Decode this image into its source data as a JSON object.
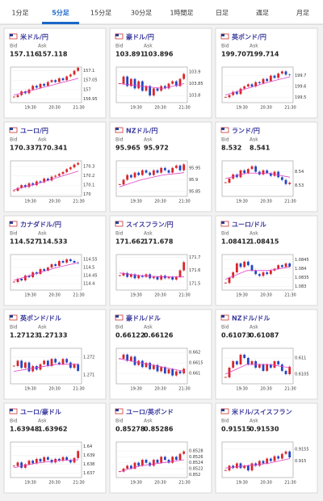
{
  "tabs": [
    "1分足",
    "5分足",
    "15分足",
    "30分足",
    "1時間足",
    "日足",
    "週足",
    "月足"
  ],
  "active_tab": 1,
  "labels": {
    "bid": "Bid",
    "ask": "Ask"
  },
  "xlabels": [
    "19:30",
    "20:30",
    "21:30"
  ],
  "cards": [
    {
      "title": "米ドル/円",
      "bid": "157.116",
      "ask": "157.118",
      "chart": {
        "ylim": [
          156.93,
          157.12
        ],
        "yticks": [
          157.1,
          157.05,
          157,
          156.95
        ],
        "closes": [
          156.96,
          156.97,
          156.99,
          156.98,
          157.0,
          157.02,
          157.01,
          157.03,
          157.02,
          157.04,
          157.05,
          157.04,
          157.06,
          157.05,
          157.07,
          157.08,
          157.1,
          157.116
        ],
        "ma": [
          156.97,
          157.0,
          157.03,
          157.06
        ]
      }
    },
    {
      "title": "豪ドル/円",
      "bid": "103.891",
      "ask": "103.896",
      "chart": {
        "ylim": [
          103.77,
          103.92
        ],
        "yticks": [
          103.9,
          103.85,
          103.8
        ],
        "closes": [
          103.85,
          103.88,
          103.84,
          103.87,
          103.83,
          103.86,
          103.82,
          103.84,
          103.8,
          103.83,
          103.82,
          103.84,
          103.83,
          103.85,
          103.86,
          103.84,
          103.87,
          103.891
        ],
        "ma": [
          103.85,
          103.84,
          103.83,
          103.85
        ]
      }
    },
    {
      "title": "英ポンド/円",
      "bid": "199.707",
      "ask": "199.714",
      "chart": {
        "ylim": [
          199.45,
          199.78
        ],
        "yticks": [
          199.7,
          199.6,
          199.5
        ],
        "closes": [
          199.5,
          199.52,
          199.55,
          199.53,
          199.58,
          199.6,
          199.62,
          199.6,
          199.64,
          199.63,
          199.67,
          199.65,
          199.7,
          199.68,
          199.72,
          199.74,
          199.71,
          199.707
        ],
        "ma": [
          199.52,
          199.58,
          199.64,
          199.69
        ]
      }
    },
    {
      "title": "ユーロ/円",
      "bid": "170.337",
      "ask": "170.341",
      "chart": {
        "ylim": [
          169.98,
          170.36
        ],
        "yticks": [
          170.3,
          170.2,
          170.1,
          170
        ],
        "closes": [
          170.04,
          170.07,
          170.1,
          170.08,
          170.12,
          170.1,
          170.14,
          170.13,
          170.17,
          170.15,
          170.19,
          170.2,
          170.22,
          170.24,
          170.27,
          170.29,
          170.32,
          170.337
        ],
        "ma": [
          170.05,
          170.11,
          170.18,
          170.25
        ]
      }
    },
    {
      "title": "NZドル/円",
      "bid": "95.965",
      "ask": "95.972",
      "chart": {
        "ylim": [
          95.83,
          95.98
        ],
        "yticks": [
          95.95,
          95.9,
          95.85
        ],
        "closes": [
          95.88,
          95.9,
          95.92,
          95.91,
          95.93,
          95.92,
          95.94,
          95.93,
          95.92,
          95.94,
          95.93,
          95.95,
          95.94,
          95.93,
          95.95,
          95.96,
          95.94,
          95.965
        ],
        "ma": [
          95.87,
          95.9,
          95.92,
          95.93
        ]
      }
    },
    {
      "title": "ランド/円",
      "bid": "8.532",
      "ask": "8.541",
      "chart": {
        "ylim": [
          8.522,
          8.548
        ],
        "yticks": [
          8.54,
          8.53
        ],
        "closes": [
          8.532,
          8.535,
          8.538,
          8.536,
          8.541,
          8.539,
          8.542,
          8.544,
          8.54,
          8.538,
          8.541,
          8.539,
          8.537,
          8.54,
          8.536,
          8.534,
          8.531,
          8.532
        ],
        "ma": [
          8.535,
          8.539,
          8.539,
          8.536
        ]
      }
    },
    {
      "title": "カナダドル/円",
      "bid": "114.527",
      "ask": "114.533",
      "chart": {
        "ylim": [
          114.36,
          114.58
        ],
        "yticks": [
          114.55,
          114.5,
          114.45,
          114.4
        ],
        "closes": [
          114.41,
          114.43,
          114.42,
          114.45,
          114.44,
          114.47,
          114.46,
          114.49,
          114.48,
          114.5,
          114.52,
          114.51,
          114.54,
          114.53,
          114.55,
          114.54,
          114.53,
          114.527
        ],
        "ma": [
          114.42,
          114.46,
          114.5,
          114.53
        ]
      }
    },
    {
      "title": "スイスフラン/円",
      "bid": "171.662",
      "ask": "171.678",
      "chart": {
        "ylim": [
          171.45,
          171.72
        ],
        "yticks": [
          171.7,
          171.6,
          171.5
        ],
        "closes": [
          171.56,
          171.58,
          171.55,
          171.57,
          171.54,
          171.56,
          171.55,
          171.57,
          171.54,
          171.55,
          171.53,
          171.56,
          171.54,
          171.55,
          171.53,
          171.55,
          171.6,
          171.662
        ],
        "ma": [
          171.58,
          171.56,
          171.55,
          171.55
        ]
      }
    },
    {
      "title": "ユーロ/ドル",
      "bid": "1.08412",
      "ask": "1.08415",
      "chart": {
        "ylim": [
          1.0828,
          1.0848
        ],
        "yticks": [
          1.0845,
          1.084,
          1.0835,
          1.083
        ],
        "closes": [
          1.0832,
          1.0835,
          1.0838,
          1.0843,
          1.0841,
          1.0844,
          1.0842,
          1.0839,
          1.0837,
          1.0836,
          1.0838,
          1.0837,
          1.0839,
          1.084,
          1.0842,
          1.0841,
          1.0843,
          1.08412
        ],
        "ma": [
          1.0834,
          1.0839,
          1.0839,
          1.0841
        ]
      }
    },
    {
      "title": "英ポンド/ドル",
      "bid": "1.27123",
      "ask": "1.27133",
      "chart": {
        "ylim": [
          1.2705,
          1.2725
        ],
        "yticks": [
          1.272,
          1.271
        ],
        "closes": [
          1.2715,
          1.2718,
          1.2714,
          1.2717,
          1.2712,
          1.2715,
          1.2713,
          1.2716,
          1.2718,
          1.2715,
          1.2719,
          1.2717,
          1.2716,
          1.2719,
          1.2717,
          1.2714,
          1.2716,
          1.27123
        ],
        "ma": [
          1.2712,
          1.2714,
          1.2716,
          1.2716
        ]
      }
    },
    {
      "title": "豪ドル/ドル",
      "bid": "0.66122",
      "ask": "0.66126",
      "chart": {
        "ylim": [
          0.6605,
          0.6622
        ],
        "yticks": [
          0.662,
          0.6615,
          0.661
        ],
        "closes": [
          0.6617,
          0.6619,
          0.6616,
          0.6618,
          0.6614,
          0.6616,
          0.6613,
          0.6615,
          0.6612,
          0.6614,
          0.6611,
          0.6613,
          0.661,
          0.6612,
          0.6609,
          0.6611,
          0.661,
          0.66122
        ],
        "ma": [
          0.6617,
          0.6615,
          0.6613,
          0.6611
        ]
      }
    },
    {
      "title": "NZドル/ドル",
      "bid": "0.61073",
      "ask": "0.61087",
      "chart": {
        "ylim": [
          0.6102,
          0.6113
        ],
        "yticks": [
          0.611,
          0.6105
        ],
        "closes": [
          0.6104,
          0.6107,
          0.6109,
          0.6108,
          0.6111,
          0.611,
          0.6108,
          0.6109,
          0.6107,
          0.6108,
          0.6106,
          0.6108,
          0.6107,
          0.6109,
          0.6108,
          0.6106,
          0.6105,
          0.61073
        ],
        "ma": [
          0.6105,
          0.6108,
          0.6108,
          0.6107
        ]
      }
    },
    {
      "title": "ユーロ/豪ドル",
      "bid": "1.63948",
      "ask": "1.63962",
      "chart": {
        "ylim": [
          1.6365,
          1.6405
        ],
        "yticks": [
          1.64,
          1.639,
          1.638,
          1.637
        ],
        "closes": [
          1.6378,
          1.6382,
          1.6376,
          1.638,
          1.6384,
          1.6381,
          1.6386,
          1.6383,
          1.6388,
          1.6385,
          1.6382,
          1.6386,
          1.6384,
          1.6388,
          1.6385,
          1.6382,
          1.6387,
          1.63948
        ],
        "ma": [
          1.6376,
          1.6381,
          1.6384,
          1.6385
        ]
      }
    },
    {
      "title": "ユーロ/英ポンド",
      "bid": "0.85278",
      "ask": "0.85286",
      "chart": {
        "ylim": [
          0.8519,
          0.8531
        ],
        "yticks": [
          0.8528,
          0.8526,
          0.8524,
          0.8522,
          0.852
        ],
        "closes": [
          0.8521,
          0.8522,
          0.8523,
          0.8522,
          0.8524,
          0.8523,
          0.8525,
          0.8524,
          0.8523,
          0.8525,
          0.8524,
          0.8526,
          0.8525,
          0.8524,
          0.8526,
          0.8525,
          0.8527,
          0.85278
        ],
        "ma": [
          0.8521,
          0.8523,
          0.8524,
          0.8525
        ]
      }
    },
    {
      "title": "米ドル/スイスフラン",
      "bid": "0.91515",
      "ask": "0.91530",
      "chart": {
        "ylim": [
          0.9143,
          0.9158
        ],
        "yticks": [
          0.9155,
          0.915
        ],
        "closes": [
          0.9146,
          0.9148,
          0.9147,
          0.9149,
          0.9147,
          0.9148,
          0.9146,
          0.9149,
          0.9148,
          0.915,
          0.9149,
          0.9151,
          0.915,
          0.9152,
          0.9151,
          0.9153,
          0.9154,
          0.91515
        ],
        "ma": [
          0.9147,
          0.9148,
          0.9149,
          0.9151
        ]
      }
    }
  ]
}
